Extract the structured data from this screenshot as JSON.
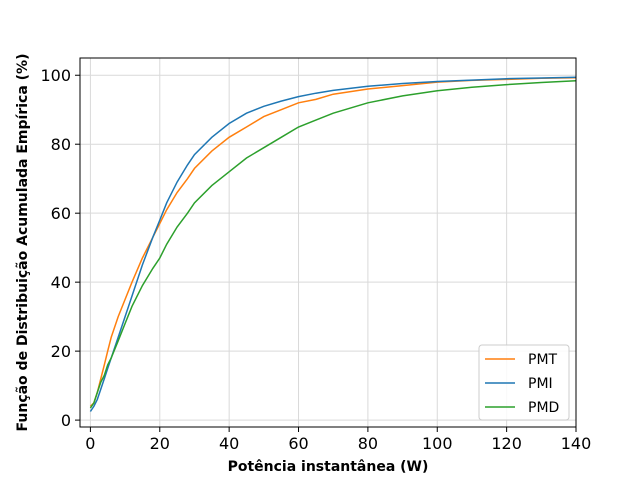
{
  "chart_data": {
    "type": "line",
    "xlabel": "Potência instantânea (W)",
    "ylabel": "Função de Distribuição Acumulada Empírica (%)",
    "xlim": [
      -3,
      140
    ],
    "ylim": [
      -2,
      105
    ],
    "xticks": [
      0,
      20,
      40,
      60,
      80,
      100,
      120,
      140
    ],
    "yticks": [
      0,
      20,
      40,
      60,
      80,
      100
    ],
    "grid": true,
    "legend_position": "lower-right",
    "series": [
      {
        "name": "PMT",
        "color": "#ff7f0e",
        "x": [
          0,
          1,
          2,
          3,
          4,
          5,
          6,
          8,
          10,
          12,
          15,
          18,
          20,
          22,
          25,
          28,
          30,
          35,
          40,
          45,
          50,
          55,
          60,
          65,
          70,
          80,
          90,
          100,
          110,
          120,
          130,
          140
        ],
        "y": [
          4,
          5,
          8,
          12,
          16,
          20,
          24,
          30,
          35,
          40,
          47,
          53,
          57,
          61,
          66,
          70,
          73,
          78,
          82,
          85,
          88,
          90,
          92,
          93,
          94.5,
          96,
          97,
          98,
          98.5,
          98.8,
          99.1,
          99.3
        ]
      },
      {
        "name": "PMI",
        "color": "#1f77b4",
        "x": [
          0,
          1,
          2,
          3,
          4,
          5,
          6,
          8,
          10,
          12,
          15,
          18,
          20,
          22,
          25,
          28,
          30,
          35,
          40,
          45,
          50,
          55,
          60,
          65,
          70,
          80,
          90,
          100,
          110,
          120,
          130,
          140
        ],
        "y": [
          2.5,
          4,
          6,
          9,
          12,
          15,
          18,
          24,
          30,
          36,
          45,
          53,
          58,
          63,
          69,
          74,
          77,
          82,
          86,
          89,
          91,
          92.5,
          93.8,
          94.8,
          95.6,
          96.8,
          97.6,
          98.2,
          98.6,
          99,
          99.2,
          99.4
        ]
      },
      {
        "name": "PMD",
        "color": "#2ca02c",
        "x": [
          0,
          1,
          2,
          3,
          4,
          5,
          6,
          8,
          10,
          12,
          15,
          18,
          20,
          22,
          25,
          28,
          30,
          35,
          40,
          45,
          50,
          55,
          60,
          65,
          70,
          80,
          90,
          100,
          110,
          120,
          130,
          140
        ],
        "y": [
          3.5,
          5,
          8,
          11,
          13,
          16,
          18,
          23,
          28,
          33,
          39,
          44,
          47,
          51,
          56,
          60,
          63,
          68,
          72,
          76,
          79,
          82,
          85,
          87,
          89,
          92,
          94,
          95.5,
          96.5,
          97.3,
          97.9,
          98.4
        ]
      }
    ]
  }
}
